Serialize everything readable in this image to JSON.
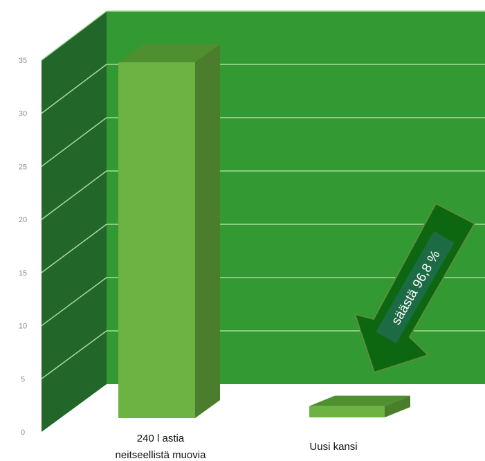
{
  "chart_data": {
    "type": "bar",
    "categories": [
      {
        "line1": "240 l astia",
        "line2": "neitseellistä muovia"
      },
      {
        "line1": "Uusi kansi",
        "line2": ""
      }
    ],
    "values": [
      33.5,
      1.07
    ],
    "ylim": [
      0,
      35
    ],
    "yticks": [
      "0",
      "5",
      "10",
      "15",
      "20",
      "25",
      "30",
      "35"
    ],
    "grid": true,
    "annotation": {
      "text": "säästä 96,8 %"
    },
    "colors": {
      "back_wall": "#339933",
      "side_wall": "#22662a",
      "gridline": "#a9dba0",
      "bar_front": "#6cb344",
      "bar_top": "#4f8f30",
      "bar_side": "#4a7d2c",
      "arrow_fill": "#0d6610",
      "arrow_stroke": "#5a8f3a",
      "callout_box": "#1d6b45",
      "tick_text": "#8a8a8a"
    }
  }
}
